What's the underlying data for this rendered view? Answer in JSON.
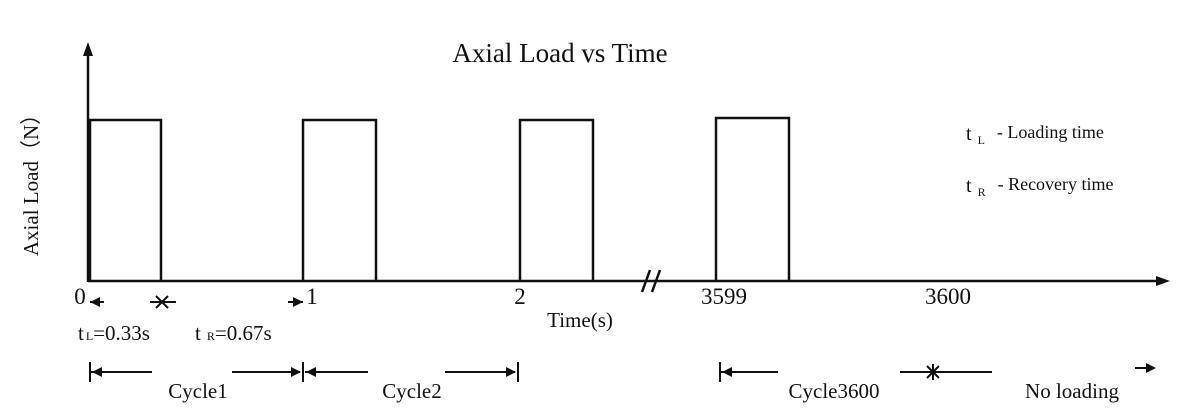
{
  "title": "Axial Load vs Time",
  "y_axis_label": "Axial Load（N）",
  "x_axis_label": "Time(s)",
  "x_tick_labels": [
    "0",
    "1",
    "2",
    "3599",
    "3600"
  ],
  "legend": [
    {
      "symbol": "t",
      "subscript": "L",
      "text": "- Loading time"
    },
    {
      "symbol": "t",
      "subscript": "R",
      "text": "- Recovery time"
    }
  ],
  "annotations": [
    {
      "symbol": "t",
      "subscript": "L",
      "text": "=0.33s"
    },
    {
      "symbol": "t",
      "subscript": "R",
      "text": "=0.67s"
    }
  ],
  "cycles": [
    "Cycle1",
    "Cycle2",
    "Cycle3600",
    "No loading"
  ]
}
